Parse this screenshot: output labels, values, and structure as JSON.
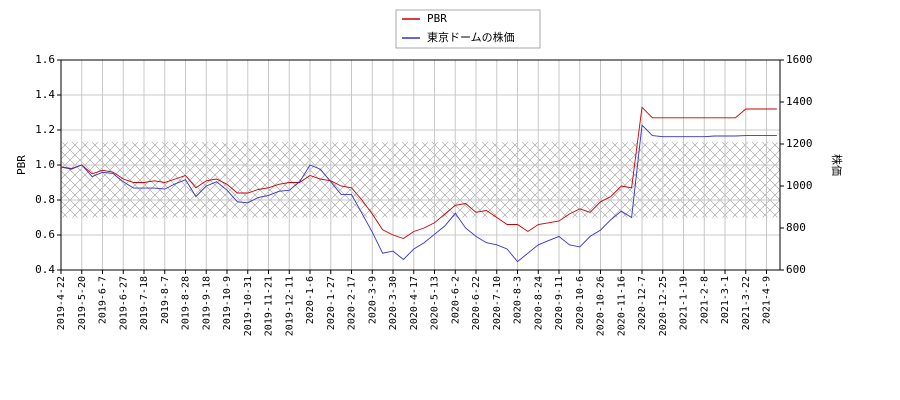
{
  "chart_data": {
    "type": "line",
    "categories": [
      "2019-4-22",
      null,
      "2019-5-20",
      null,
      "2019-6-7",
      null,
      "2019-6-27",
      null,
      "2019-7-18",
      null,
      "2019-8-7",
      null,
      "2019-8-28",
      null,
      "2019-9-18",
      null,
      "2019-10-9",
      null,
      "2019-10-31",
      null,
      "2019-11-21",
      null,
      "2019-12-11",
      null,
      "2020-1-6",
      null,
      "2020-1-27",
      null,
      "2020-2-17",
      null,
      "2020-3-9",
      null,
      "2020-3-30",
      null,
      "2020-4-17",
      null,
      "2020-5-13",
      null,
      "2020-6-2",
      null,
      "2020-6-22",
      null,
      "2020-7-10",
      null,
      "2020-8-3",
      null,
      "2020-8-24",
      null,
      "2020-9-11",
      null,
      "2020-10-6",
      null,
      "2020-10-26",
      null,
      "2020-11-16",
      null,
      "2020-12-7",
      null,
      "2020-12-25",
      null,
      "2021-1-19",
      null,
      "2021-2-8",
      null,
      "2021-3-1",
      null,
      "2021-3-22",
      null,
      "2021-4-9",
      null
    ],
    "series": [
      {
        "name": "PBR",
        "color": "#cc0000",
        "axis": "y",
        "values": [
          0.99,
          0.98,
          1.0,
          0.95,
          0.97,
          0.96,
          0.92,
          0.9,
          0.9,
          0.91,
          0.9,
          0.92,
          0.94,
          0.87,
          0.91,
          0.92,
          0.89,
          0.84,
          0.84,
          0.86,
          0.87,
          0.89,
          0.9,
          0.9,
          0.94,
          0.92,
          0.91,
          0.88,
          0.87,
          0.8,
          0.72,
          0.63,
          0.6,
          0.58,
          0.62,
          0.64,
          0.67,
          0.72,
          0.77,
          0.78,
          0.73,
          0.74,
          0.7,
          0.66,
          0.66,
          0.62,
          0.66,
          0.67,
          0.68,
          0.72,
          0.75,
          0.73,
          0.79,
          0.82,
          0.88,
          0.87,
          1.33,
          1.27,
          1.27,
          1.27,
          1.27,
          1.27,
          1.27,
          1.27,
          1.27,
          1.27,
          1.32,
          1.32,
          1.32,
          1.32
        ]
      },
      {
        "name": "東京ドームの株価",
        "color": "#3333cc",
        "axis": "y2",
        "values": [
          1090,
          1080,
          1100,
          1045,
          1065,
          1060,
          1020,
          990,
          990,
          990,
          985,
          1010,
          1030,
          950,
          1000,
          1020,
          980,
          925,
          920,
          945,
          955,
          975,
          980,
          1020,
          1100,
          1080,
          1020,
          960,
          960,
          870,
          780,
          680,
          690,
          650,
          700,
          730,
          770,
          810,
          870,
          800,
          760,
          730,
          720,
          700,
          640,
          680,
          720,
          740,
          760,
          720,
          710,
          760,
          790,
          840,
          880,
          850,
          1290,
          1240,
          1235,
          1235,
          1235,
          1235,
          1235,
          1238,
          1238,
          1238,
          1240,
          1240,
          1240,
          1240
        ]
      }
    ],
    "ylabel": "PBR",
    "y2label": "株価",
    "ylim": [
      0.4,
      1.6
    ],
    "yticks": [
      0.4,
      0.6,
      0.8,
      {
        "value": 1,
        "label": "1.0"
      },
      1.2,
      1.4,
      1.6
    ],
    "y2lim": [
      600,
      1600
    ],
    "y2ticks": [
      600,
      800,
      1000,
      1200,
      1400,
      1600
    ],
    "hatch_range": [
      0.7,
      1.13
    ],
    "grid": true,
    "legend": "top"
  }
}
